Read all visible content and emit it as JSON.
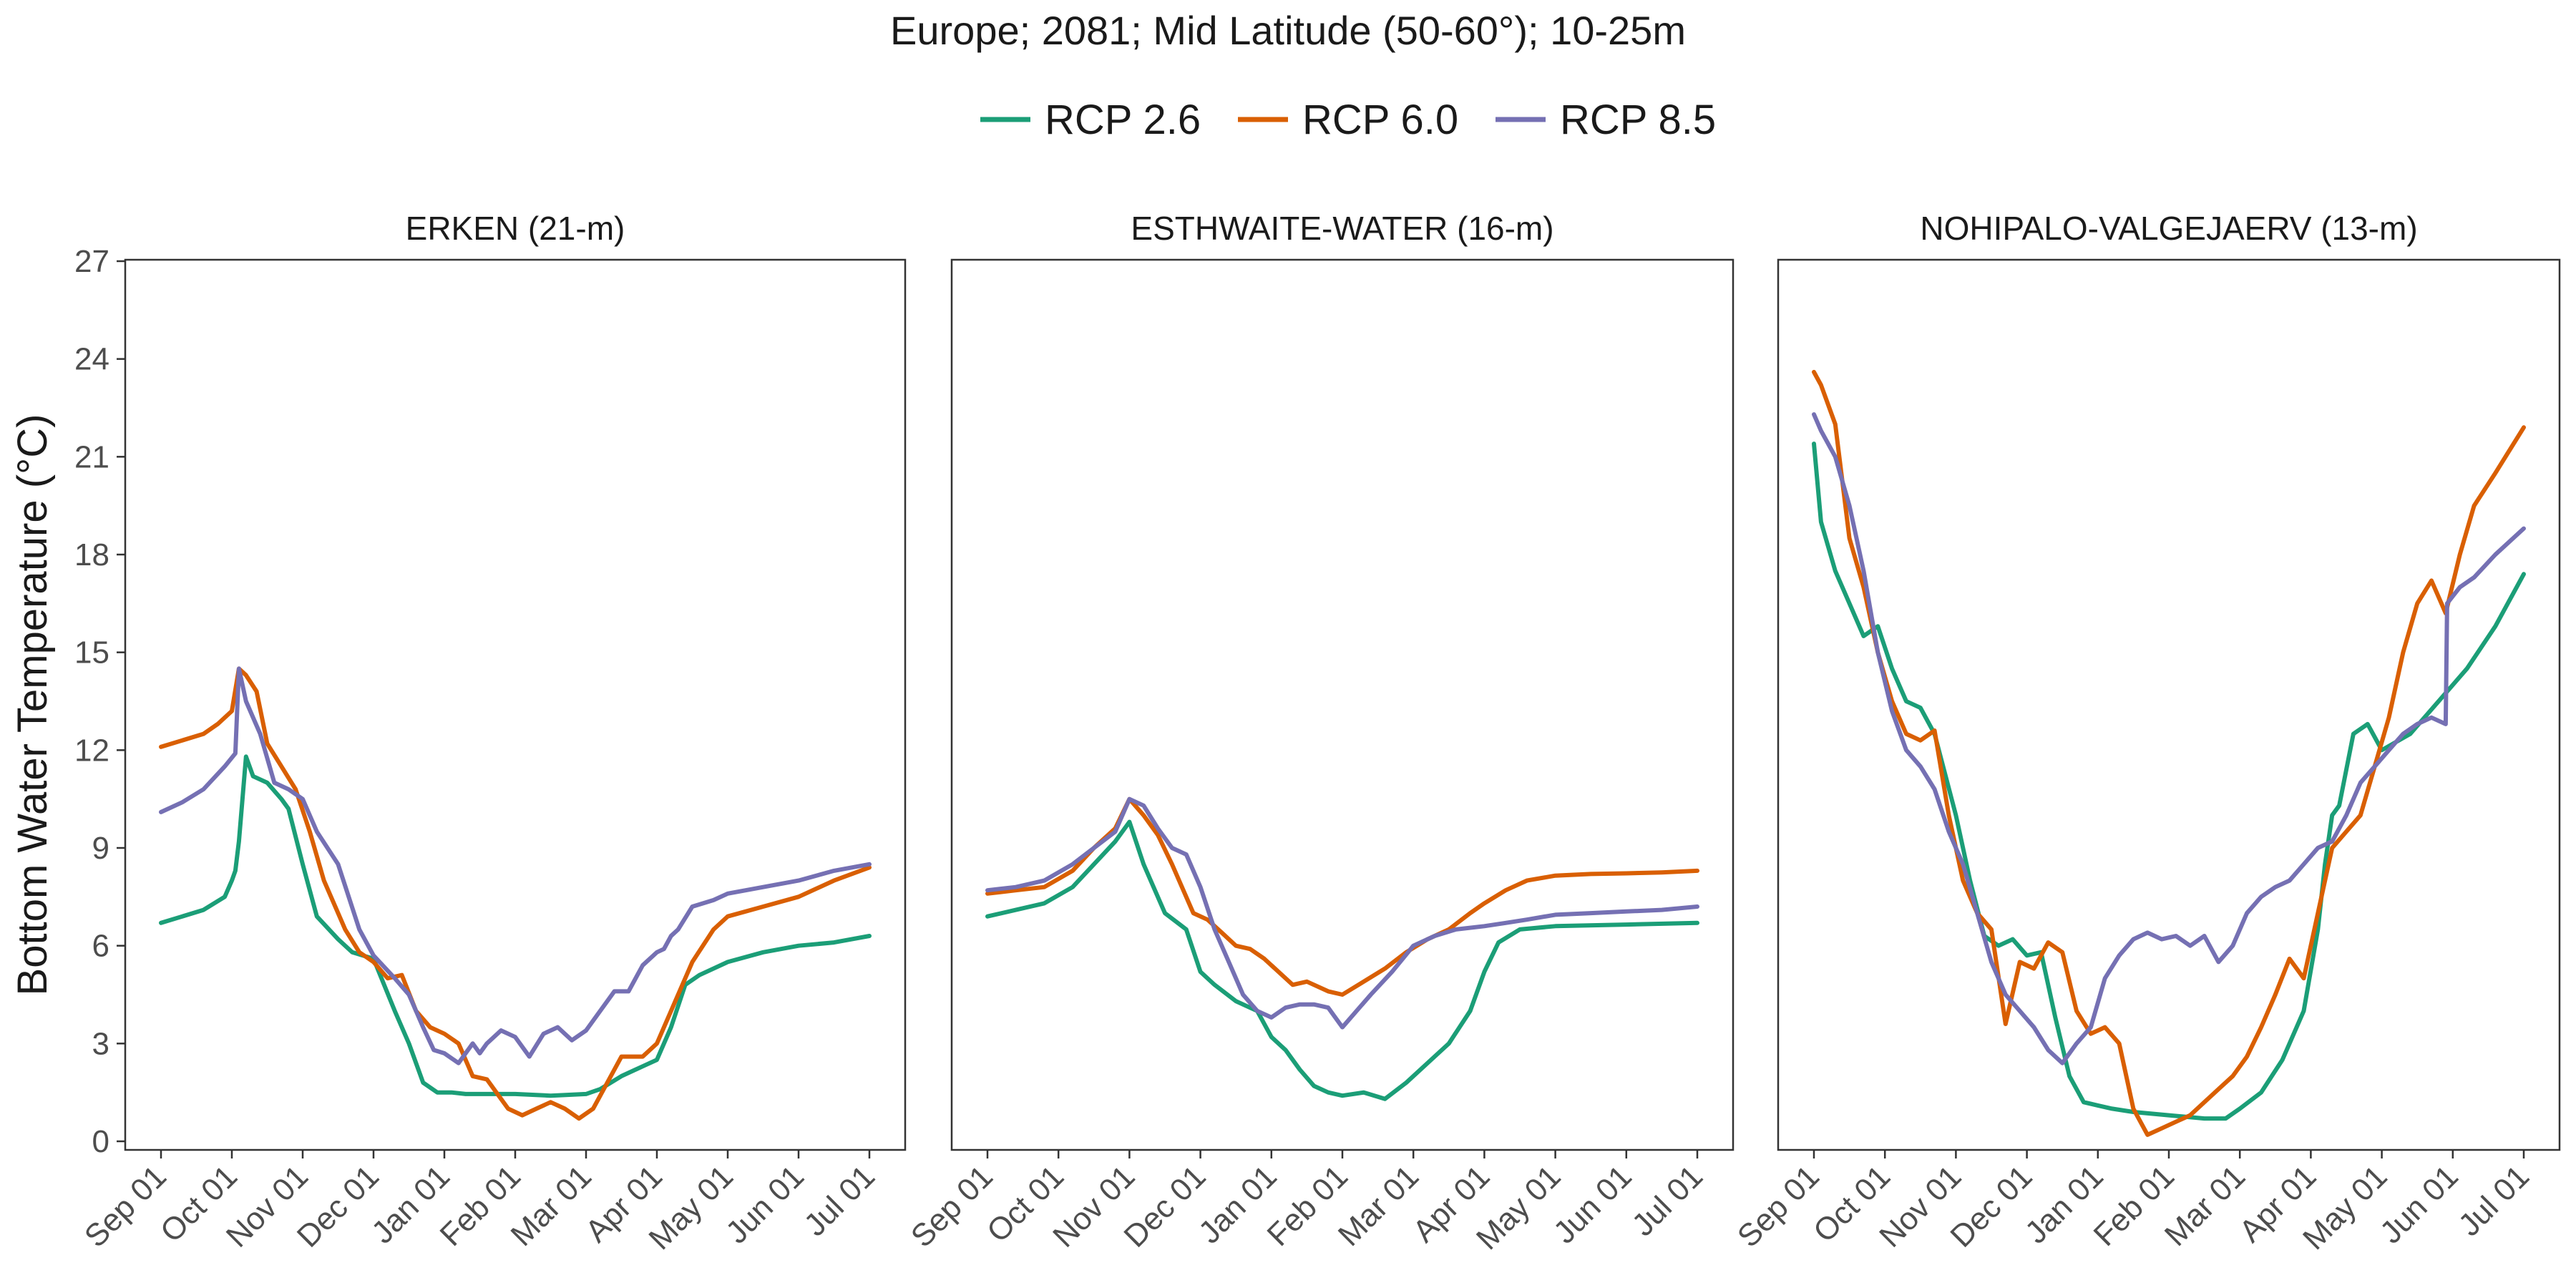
{
  "chart_data": {
    "type": "line",
    "title": "Europe;  2081;  Mid Latitude (50-60°);  10-25m",
    "ylabel": "Bottom Water Temperature (°C)",
    "xlabel": "",
    "ylim": [
      0,
      27
    ],
    "yticks": [
      0,
      3,
      6,
      9,
      12,
      15,
      18,
      21,
      24,
      27
    ],
    "xticks": [
      "Sep 01",
      "Oct 01",
      "Nov 01",
      "Dec 01",
      "Jan 01",
      "Feb 01",
      "Mar 01",
      "Apr 01",
      "May 01",
      "Jun 01",
      "Jul 01"
    ],
    "legend_position": "top",
    "grid": false,
    "series_styles": [
      {
        "name": "RCP 2.6",
        "color": "#1b9e77"
      },
      {
        "name": "RCP 6.0",
        "color": "#d95f02"
      },
      {
        "name": "RCP 8.5",
        "color": "#7570b3"
      }
    ],
    "panels": [
      {
        "title": "ERKEN (21-m)",
        "series": [
          {
            "name": "RCP 2.6",
            "x": [
              0,
              0.3,
              0.6,
              0.9,
              1.0,
              1.05,
              1.1,
              1.2,
              1.3,
              1.5,
              1.7,
              1.8,
              2.0,
              2.2,
              2.5,
              2.7,
              3.0,
              3.3,
              3.5,
              3.7,
              3.9,
              4.0,
              4.1,
              4.3,
              4.5,
              5.0,
              5.5,
              6.0,
              6.2,
              6.5,
              6.8,
              7.0,
              7.2,
              7.4,
              7.6,
              8.0,
              8.5,
              9.0,
              9.5,
              10.0
            ],
            "y": [
              6.7,
              6.9,
              7.1,
              7.5,
              8.0,
              8.3,
              9.2,
              11.8,
              11.2,
              11.0,
              10.5,
              10.2,
              8.5,
              6.9,
              6.2,
              5.8,
              5.6,
              4.0,
              3.0,
              1.8,
              1.5,
              1.5,
              1.5,
              1.45,
              1.45,
              1.45,
              1.4,
              1.45,
              1.6,
              2.0,
              2.3,
              2.5,
              3.5,
              4.8,
              5.1,
              5.5,
              5.8,
              6.0,
              6.1,
              6.3
            ]
          },
          {
            "name": "RCP 6.0",
            "x": [
              0,
              0.3,
              0.6,
              0.8,
              1.0,
              1.1,
              1.2,
              1.35,
              1.5,
              1.7,
              1.9,
              2.1,
              2.3,
              2.6,
              2.8,
              3.0,
              3.2,
              3.4,
              3.6,
              3.8,
              4.0,
              4.2,
              4.4,
              4.6,
              4.9,
              5.1,
              5.3,
              5.5,
              5.7,
              5.9,
              6.1,
              6.3,
              6.5,
              6.8,
              7.0,
              7.2,
              7.5,
              7.8,
              8.0,
              8.5,
              9.0,
              9.5,
              10.0
            ],
            "y": [
              12.1,
              12.3,
              12.5,
              12.8,
              13.2,
              14.5,
              14.3,
              13.8,
              12.2,
              11.5,
              10.8,
              9.5,
              8.0,
              6.5,
              5.8,
              5.5,
              5.0,
              5.1,
              4.0,
              3.5,
              3.3,
              3.0,
              2.0,
              1.9,
              1.0,
              0.8,
              1.0,
              1.2,
              1.0,
              0.7,
              1.0,
              1.8,
              2.6,
              2.6,
              3.0,
              4.0,
              5.5,
              6.5,
              6.9,
              7.2,
              7.5,
              8.0,
              8.4
            ]
          },
          {
            "name": "RCP 8.5",
            "x": [
              0,
              0.3,
              0.6,
              0.9,
              1.05,
              1.1,
              1.2,
              1.4,
              1.6,
              1.8,
              2.0,
              2.2,
              2.5,
              2.8,
              3.0,
              3.3,
              3.5,
              3.7,
              3.85,
              4.0,
              4.2,
              4.4,
              4.5,
              4.6,
              4.8,
              5.0,
              5.2,
              5.4,
              5.6,
              5.8,
              6.0,
              6.2,
              6.4,
              6.6,
              6.8,
              7.0,
              7.1,
              7.2,
              7.3,
              7.5,
              7.8,
              8.0,
              8.5,
              9.0,
              9.5,
              10.0
            ],
            "y": [
              10.1,
              10.4,
              10.8,
              11.5,
              11.9,
              14.5,
              13.5,
              12.5,
              11.0,
              10.8,
              10.5,
              9.5,
              8.5,
              6.5,
              5.7,
              5.0,
              4.5,
              3.5,
              2.8,
              2.7,
              2.4,
              3.0,
              2.7,
              3.0,
              3.4,
              3.2,
              2.6,
              3.3,
              3.5,
              3.1,
              3.4,
              4.0,
              4.6,
              4.6,
              5.4,
              5.8,
              5.9,
              6.3,
              6.5,
              7.2,
              7.4,
              7.6,
              7.8,
              8.0,
              8.3,
              8.5
            ]
          }
        ]
      },
      {
        "title": "ESTHWAITE-WATER (16-m)",
        "series": [
          {
            "name": "RCP 2.6",
            "x": [
              0,
              0.4,
              0.8,
              1.2,
              1.5,
              1.8,
              2.0,
              2.2,
              2.5,
              2.8,
              3.0,
              3.2,
              3.5,
              3.8,
              4.0,
              4.2,
              4.4,
              4.6,
              4.8,
              5.0,
              5.3,
              5.6,
              5.9,
              6.2,
              6.5,
              6.8,
              7.0,
              7.2,
              7.5,
              8.0,
              9.0,
              10.0
            ],
            "y": [
              6.9,
              7.1,
              7.3,
              7.8,
              8.5,
              9.2,
              9.8,
              8.5,
              7.0,
              6.5,
              5.2,
              4.8,
              4.3,
              4.0,
              3.2,
              2.8,
              2.2,
              1.7,
              1.5,
              1.4,
              1.5,
              1.3,
              1.8,
              2.4,
              3.0,
              4.0,
              5.2,
              6.1,
              6.5,
              6.6,
              6.65,
              6.7
            ]
          },
          {
            "name": "RCP 6.0",
            "x": [
              0,
              0.4,
              0.8,
              1.2,
              1.5,
              1.8,
              2.0,
              2.2,
              2.4,
              2.6,
              2.9,
              3.1,
              3.3,
              3.5,
              3.7,
              3.9,
              4.1,
              4.3,
              4.5,
              4.8,
              5.0,
              5.3,
              5.6,
              5.9,
              6.2,
              6.5,
              6.8,
              7.0,
              7.3,
              7.6,
              8.0,
              8.5,
              9.0,
              9.5,
              10.0
            ],
            "y": [
              7.6,
              7.7,
              7.8,
              8.3,
              9.0,
              9.6,
              10.5,
              10.0,
              9.4,
              8.5,
              7.0,
              6.8,
              6.4,
              6.0,
              5.9,
              5.6,
              5.2,
              4.8,
              4.9,
              4.6,
              4.5,
              4.9,
              5.3,
              5.8,
              6.2,
              6.5,
              7.0,
              7.3,
              7.7,
              8.0,
              8.15,
              8.2,
              8.22,
              8.25,
              8.3
            ]
          },
          {
            "name": "RCP 8.5",
            "x": [
              0,
              0.4,
              0.8,
              1.2,
              1.5,
              1.8,
              2.0,
              2.2,
              2.4,
              2.6,
              2.8,
              3.0,
              3.2,
              3.4,
              3.6,
              3.8,
              4.0,
              4.2,
              4.4,
              4.6,
              4.8,
              5.0,
              5.2,
              5.4,
              5.7,
              6.0,
              6.3,
              6.6,
              7.0,
              7.3,
              7.6,
              8.0,
              8.5,
              9.0,
              9.5,
              10.0
            ],
            "y": [
              7.7,
              7.8,
              8.0,
              8.5,
              9.0,
              9.5,
              10.5,
              10.3,
              9.6,
              9.0,
              8.8,
              7.8,
              6.5,
              5.5,
              4.5,
              4.0,
              3.8,
              4.1,
              4.2,
              4.2,
              4.1,
              3.5,
              4.0,
              4.5,
              5.2,
              6.0,
              6.3,
              6.5,
              6.6,
              6.7,
              6.8,
              6.95,
              7.0,
              7.05,
              7.1,
              7.2
            ]
          }
        ]
      },
      {
        "title": "NOHIPALO-VALGEJAERV (13-m)",
        "series": [
          {
            "name": "RCP 2.6",
            "x": [
              0,
              0.1,
              0.3,
              0.5,
              0.7,
              0.9,
              1.1,
              1.3,
              1.5,
              1.7,
              2.0,
              2.2,
              2.4,
              2.6,
              2.8,
              3.0,
              3.2,
              3.4,
              3.6,
              3.8,
              4.0,
              4.2,
              4.5,
              5.0,
              5.5,
              5.8,
              6.0,
              6.3,
              6.6,
              6.9,
              7.1,
              7.2,
              7.3,
              7.4,
              7.6,
              7.8,
              8.0,
              8.4,
              8.8,
              9.2,
              9.6,
              10.0
            ],
            "y": [
              21.4,
              19.0,
              17.5,
              16.5,
              15.5,
              15.8,
              14.5,
              13.5,
              13.3,
              12.5,
              10.0,
              8.0,
              6.3,
              6.0,
              6.2,
              5.7,
              5.8,
              3.8,
              2.0,
              1.2,
              1.1,
              1.0,
              0.9,
              0.8,
              0.7,
              0.7,
              1.0,
              1.5,
              2.5,
              4.0,
              6.5,
              8.5,
              10.0,
              10.3,
              12.5,
              12.8,
              12.0,
              12.5,
              13.5,
              14.5,
              15.8,
              17.4
            ]
          },
          {
            "name": "RCP 6.0",
            "x": [
              0,
              0.1,
              0.3,
              0.5,
              0.7,
              0.9,
              1.1,
              1.3,
              1.5,
              1.7,
              1.9,
              2.1,
              2.3,
              2.5,
              2.7,
              2.9,
              3.1,
              3.3,
              3.5,
              3.7,
              3.9,
              4.1,
              4.3,
              4.5,
              4.7,
              4.9,
              5.1,
              5.3,
              5.5,
              5.7,
              5.9,
              6.1,
              6.3,
              6.5,
              6.7,
              6.9,
              7.1,
              7.3,
              7.5,
              7.7,
              7.9,
              8.1,
              8.3,
              8.5,
              8.7,
              8.9,
              9.1,
              9.3,
              9.6,
              10.0
            ],
            "y": [
              23.6,
              23.2,
              22.0,
              18.5,
              17.0,
              15.0,
              13.5,
              12.5,
              12.3,
              12.6,
              10.0,
              8.0,
              7.0,
              6.5,
              3.6,
              5.5,
              5.3,
              6.1,
              5.8,
              4.0,
              3.3,
              3.5,
              3.0,
              1.0,
              0.2,
              0.4,
              0.6,
              0.8,
              1.2,
              1.6,
              2.0,
              2.6,
              3.5,
              4.5,
              5.6,
              5.0,
              7.0,
              9.0,
              9.5,
              10.0,
              11.5,
              13.0,
              15.0,
              16.5,
              17.2,
              16.2,
              18.0,
              19.5,
              20.5,
              21.9
            ]
          },
          {
            "name": "RCP 8.5",
            "x": [
              0,
              0.1,
              0.3,
              0.5,
              0.7,
              0.9,
              1.1,
              1.3,
              1.5,
              1.7,
              1.9,
              2.1,
              2.3,
              2.5,
              2.7,
              2.9,
              3.1,
              3.3,
              3.5,
              3.7,
              3.9,
              4.1,
              4.3,
              4.5,
              4.7,
              4.9,
              5.1,
              5.3,
              5.5,
              5.7,
              5.9,
              6.1,
              6.3,
              6.5,
              6.7,
              6.9,
              7.1,
              7.3,
              7.5,
              7.7,
              7.9,
              8.1,
              8.3,
              8.5,
              8.7,
              8.9,
              8.92,
              9.1,
              9.3,
              9.6,
              10.0
            ],
            "y": [
              22.3,
              21.8,
              21.0,
              19.5,
              17.5,
              15.0,
              13.2,
              12.0,
              11.5,
              10.8,
              9.5,
              8.5,
              7.0,
              5.5,
              4.5,
              4.0,
              3.5,
              2.8,
              2.4,
              3.0,
              3.5,
              5.0,
              5.7,
              6.2,
              6.4,
              6.2,
              6.3,
              6.0,
              6.3,
              5.5,
              6.0,
              7.0,
              7.5,
              7.8,
              8.0,
              8.5,
              9.0,
              9.2,
              10.0,
              11.0,
              11.5,
              12.0,
              12.5,
              12.8,
              13.0,
              12.8,
              16.5,
              17.0,
              17.3,
              18.0,
              18.8
            ]
          }
        ]
      }
    ]
  }
}
